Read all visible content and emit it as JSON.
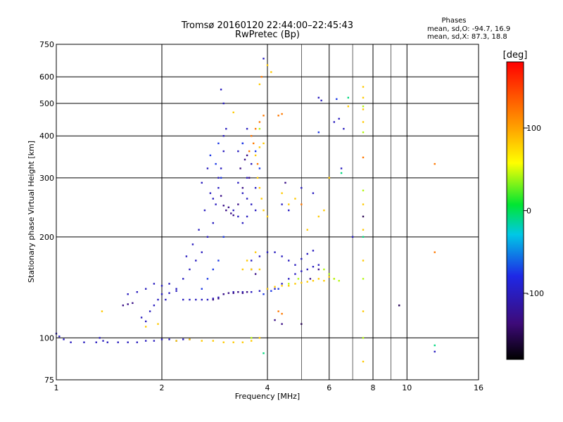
{
  "chart_data": {
    "type": "scatter",
    "title": "Tromsø 20160120 22:44:00–22:45:43",
    "subtitle": "RwPretec (Bp)",
    "xlabel": "Frequency [MHz]",
    "ylabel": "Stationary phase Virtual Height [km]",
    "x_scale": "log",
    "y_scale": "log",
    "xlim": [
      1,
      16
    ],
    "ylim": [
      75,
      750
    ],
    "x_ticks": [
      1,
      2,
      4,
      6,
      8,
      10,
      16
    ],
    "x_gridlines": [
      2,
      4,
      6,
      8,
      10
    ],
    "x_minor_gridlines": [
      5,
      7,
      9
    ],
    "y_ticks": [
      75,
      100,
      200,
      300,
      400,
      500,
      600,
      750
    ],
    "y_gridlines": [
      100,
      200,
      300,
      400,
      500,
      600
    ],
    "grid": true,
    "colorbar": {
      "label": "[deg]",
      "range": [
        -180,
        180
      ],
      "ticks": [
        -100,
        0,
        100
      ]
    },
    "stats": {
      "heading": "Phases",
      "line_o": "mean, sd,O: -94.7, 16.9",
      "line_x": "mean, sd,X:  87.3, 18.8"
    },
    "series": [
      {
        "phase": -100,
        "points": [
          [
            1.0,
            103
          ],
          [
            1.02,
            101
          ],
          [
            1.05,
            99
          ],
          [
            1.1,
            97
          ],
          [
            1.2,
            97
          ],
          [
            1.3,
            97
          ],
          [
            1.4,
            97
          ],
          [
            1.5,
            97
          ],
          [
            1.6,
            97
          ],
          [
            1.7,
            97
          ],
          [
            1.8,
            98
          ],
          [
            1.9,
            98
          ],
          [
            2.0,
            99
          ],
          [
            2.1,
            99
          ],
          [
            2.2,
            98
          ],
          [
            2.3,
            99
          ],
          [
            2.4,
            99
          ],
          [
            1.33,
            100
          ],
          [
            1.36,
            98
          ],
          [
            1.75,
            115
          ],
          [
            1.8,
            112
          ],
          [
            1.85,
            120
          ],
          [
            1.9,
            125
          ],
          [
            1.95,
            130
          ],
          [
            2.0,
            135
          ],
          [
            2.05,
            130
          ],
          [
            2.1,
            136
          ],
          [
            2.2,
            138
          ],
          [
            2.3,
            130
          ],
          [
            2.4,
            130
          ],
          [
            2.5,
            130
          ],
          [
            2.6,
            130
          ],
          [
            2.7,
            130
          ],
          [
            2.8,
            131
          ],
          [
            2.9,
            132
          ],
          [
            3.0,
            135
          ],
          [
            3.2,
            137
          ],
          [
            3.4,
            137
          ],
          [
            3.6,
            137
          ],
          [
            3.8,
            138
          ],
          [
            4.2,
            140
          ],
          [
            4.4,
            145
          ],
          [
            4.6,
            150
          ],
          [
            4.8,
            155
          ],
          [
            5.0,
            158
          ],
          [
            5.2,
            160
          ],
          [
            5.4,
            163
          ],
          [
            5.6,
            165
          ],
          [
            1.6,
            135
          ],
          [
            1.7,
            137
          ],
          [
            1.8,
            140
          ],
          [
            1.9,
            145
          ],
          [
            2.0,
            143
          ],
          [
            2.1,
            145
          ],
          [
            2.2,
            140
          ],
          [
            2.3,
            150
          ],
          [
            2.4,
            160
          ],
          [
            2.5,
            170
          ],
          [
            2.6,
            180
          ],
          [
            2.7,
            200
          ],
          [
            2.8,
            220
          ],
          [
            2.85,
            250
          ],
          [
            2.9,
            280
          ],
          [
            2.95,
            320
          ],
          [
            3.0,
            360
          ],
          [
            3.05,
            420
          ],
          [
            2.8,
            260
          ],
          [
            2.9,
            300
          ],
          [
            3.0,
            400
          ],
          [
            3.2,
            240
          ],
          [
            3.3,
            230
          ],
          [
            3.4,
            220
          ],
          [
            3.5,
            230
          ],
          [
            3.6,
            250
          ],
          [
            3.7,
            280
          ],
          [
            3.4,
            270
          ],
          [
            3.5,
            300
          ],
          [
            3.6,
            330
          ],
          [
            3.3,
            360
          ],
          [
            3.4,
            380
          ],
          [
            3.5,
            420
          ],
          [
            3.3,
            290
          ],
          [
            3.5,
            260
          ],
          [
            3.7,
            240
          ],
          [
            2.6,
            290
          ],
          [
            2.7,
            320
          ],
          [
            2.75,
            270
          ],
          [
            2.65,
            240
          ],
          [
            2.55,
            210
          ],
          [
            2.45,
            190
          ],
          [
            2.35,
            175
          ],
          [
            3.6,
            170
          ],
          [
            3.8,
            175
          ],
          [
            4.0,
            180
          ],
          [
            4.2,
            180
          ],
          [
            4.4,
            175
          ],
          [
            4.6,
            170
          ],
          [
            4.8,
            165
          ],
          [
            5.0,
            172
          ],
          [
            5.2,
            178
          ],
          [
            5.4,
            182
          ],
          [
            4.4,
            250
          ],
          [
            4.6,
            240
          ],
          [
            5.0,
            280
          ],
          [
            5.4,
            270
          ],
          [
            5.6,
            520
          ],
          [
            5.7,
            510
          ],
          [
            6.2,
            440
          ],
          [
            6.4,
            450
          ],
          [
            6.6,
            420
          ],
          [
            6.5,
            320
          ],
          [
            7.0,
            200
          ],
          [
            9.5,
            125
          ],
          [
            12.0,
            91
          ],
          [
            3.9,
            680
          ],
          [
            3.0,
            500
          ],
          [
            2.95,
            550
          ]
        ]
      },
      {
        "phase": -130,
        "points": [
          [
            1.55,
            125
          ],
          [
            1.6,
            126
          ],
          [
            1.65,
            127
          ],
          [
            2.8,
            130
          ],
          [
            2.9,
            131
          ],
          [
            3.0,
            135
          ],
          [
            3.1,
            136
          ],
          [
            3.2,
            136
          ],
          [
            3.3,
            137
          ],
          [
            3.4,
            136
          ],
          [
            3.5,
            137
          ],
          [
            3.1,
            245
          ],
          [
            3.15,
            235
          ],
          [
            3.2,
            232
          ],
          [
            3.3,
            250
          ],
          [
            3.4,
            280
          ],
          [
            2.95,
            265
          ],
          [
            3.0,
            248
          ],
          [
            3.05,
            240
          ],
          [
            3.35,
            320
          ],
          [
            3.45,
            340
          ],
          [
            3.5,
            350
          ],
          [
            3.55,
            300
          ],
          [
            3.6,
            160
          ],
          [
            3.7,
            155
          ],
          [
            4.5,
            290
          ],
          [
            5.3,
            150
          ],
          [
            5.6,
            160
          ],
          [
            4.4,
            110
          ],
          [
            4.2,
            113
          ]
        ]
      },
      {
        "phase": -75,
        "points": [
          [
            2.6,
            140
          ],
          [
            2.7,
            150
          ],
          [
            2.8,
            160
          ],
          [
            2.9,
            170
          ],
          [
            3.0,
            200
          ],
          [
            2.95,
            300
          ],
          [
            2.9,
            380
          ],
          [
            2.85,
            330
          ],
          [
            2.75,
            350
          ],
          [
            3.4,
            380
          ],
          [
            3.6,
            400
          ],
          [
            3.7,
            360
          ],
          [
            3.8,
            320
          ],
          [
            4.0,
            140
          ],
          [
            4.1,
            138
          ],
          [
            4.3,
            140
          ],
          [
            3.9,
            135
          ],
          [
            6.3,
            515
          ],
          [
            5.6,
            410
          ]
        ]
      },
      {
        "phase": 80,
        "points": [
          [
            2.2,
            98
          ],
          [
            2.4,
            99
          ],
          [
            2.6,
            98
          ],
          [
            2.8,
            98
          ],
          [
            3.0,
            97
          ],
          [
            3.2,
            97
          ],
          [
            3.4,
            97
          ],
          [
            3.6,
            98
          ],
          [
            3.8,
            100
          ],
          [
            1.35,
            120
          ],
          [
            1.8,
            108
          ],
          [
            1.95,
            110
          ],
          [
            4.0,
            140
          ],
          [
            4.2,
            142
          ],
          [
            4.4,
            143
          ],
          [
            4.6,
            143
          ],
          [
            4.8,
            145
          ],
          [
            5.0,
            146
          ],
          [
            5.2,
            147
          ],
          [
            5.4,
            148
          ],
          [
            5.6,
            150
          ],
          [
            5.8,
            148
          ],
          [
            6.0,
            152
          ],
          [
            6.2,
            150
          ],
          [
            3.7,
            350
          ],
          [
            3.8,
            370
          ],
          [
            3.9,
            380
          ],
          [
            3.75,
            300
          ],
          [
            3.8,
            280
          ],
          [
            3.85,
            260
          ],
          [
            3.9,
            240
          ],
          [
            4.0,
            230
          ],
          [
            3.7,
            180
          ],
          [
            3.8,
            160
          ],
          [
            4.6,
            250
          ],
          [
            4.8,
            260
          ],
          [
            4.4,
            270
          ],
          [
            5.6,
            230
          ],
          [
            5.8,
            240
          ],
          [
            6.0,
            300
          ],
          [
            5.2,
            210
          ],
          [
            6.8,
            490
          ],
          [
            7.5,
            560
          ],
          [
            7.5,
            520
          ],
          [
            7.5,
            480
          ],
          [
            7.5,
            440
          ],
          [
            7.5,
            250
          ],
          [
            7.5,
            210
          ],
          [
            7.5,
            170
          ],
          [
            7.5,
            120
          ],
          [
            7.5,
            85
          ],
          [
            4.0,
            650
          ],
          [
            4.1,
            620
          ],
          [
            3.8,
            570
          ],
          [
            3.2,
            470
          ],
          [
            3.6,
            160
          ],
          [
            3.5,
            170
          ],
          [
            3.4,
            160
          ]
        ]
      },
      {
        "phase": 120,
        "points": [
          [
            3.6,
            400
          ],
          [
            3.7,
            420
          ],
          [
            3.8,
            440
          ],
          [
            3.9,
            460
          ],
          [
            3.65,
            380
          ],
          [
            3.75,
            330
          ],
          [
            3.55,
            360
          ],
          [
            4.3,
            460
          ],
          [
            4.4,
            465
          ],
          [
            4.3,
            120
          ],
          [
            4.4,
            118
          ],
          [
            7.5,
            345
          ],
          [
            12.0,
            330
          ],
          [
            12.0,
            180
          ],
          [
            5.0,
            250
          ],
          [
            3.85,
            600
          ]
        ]
      },
      {
        "phase": 40,
        "points": [
          [
            5.8,
            160
          ],
          [
            6.0,
            155
          ],
          [
            6.2,
            150
          ],
          [
            6.4,
            148
          ],
          [
            7.5,
            490
          ],
          [
            7.5,
            410
          ],
          [
            7.5,
            275
          ],
          [
            7.5,
            150
          ],
          [
            7.5,
            100
          ],
          [
            4.6,
            145
          ],
          [
            4.9,
            150
          ],
          [
            3.8,
            420
          ],
          [
            3.6,
            100
          ]
        ]
      },
      {
        "phase": -10,
        "points": [
          [
            6.8,
            520
          ],
          [
            6.5,
            310
          ],
          [
            7.5,
            200
          ],
          [
            3.9,
            90
          ],
          [
            12.0,
            95
          ]
        ]
      },
      {
        "phase": -150,
        "points": [
          [
            9.5,
            125
          ],
          [
            7.5,
            230
          ],
          [
            5.0,
            110
          ]
        ]
      }
    ]
  }
}
